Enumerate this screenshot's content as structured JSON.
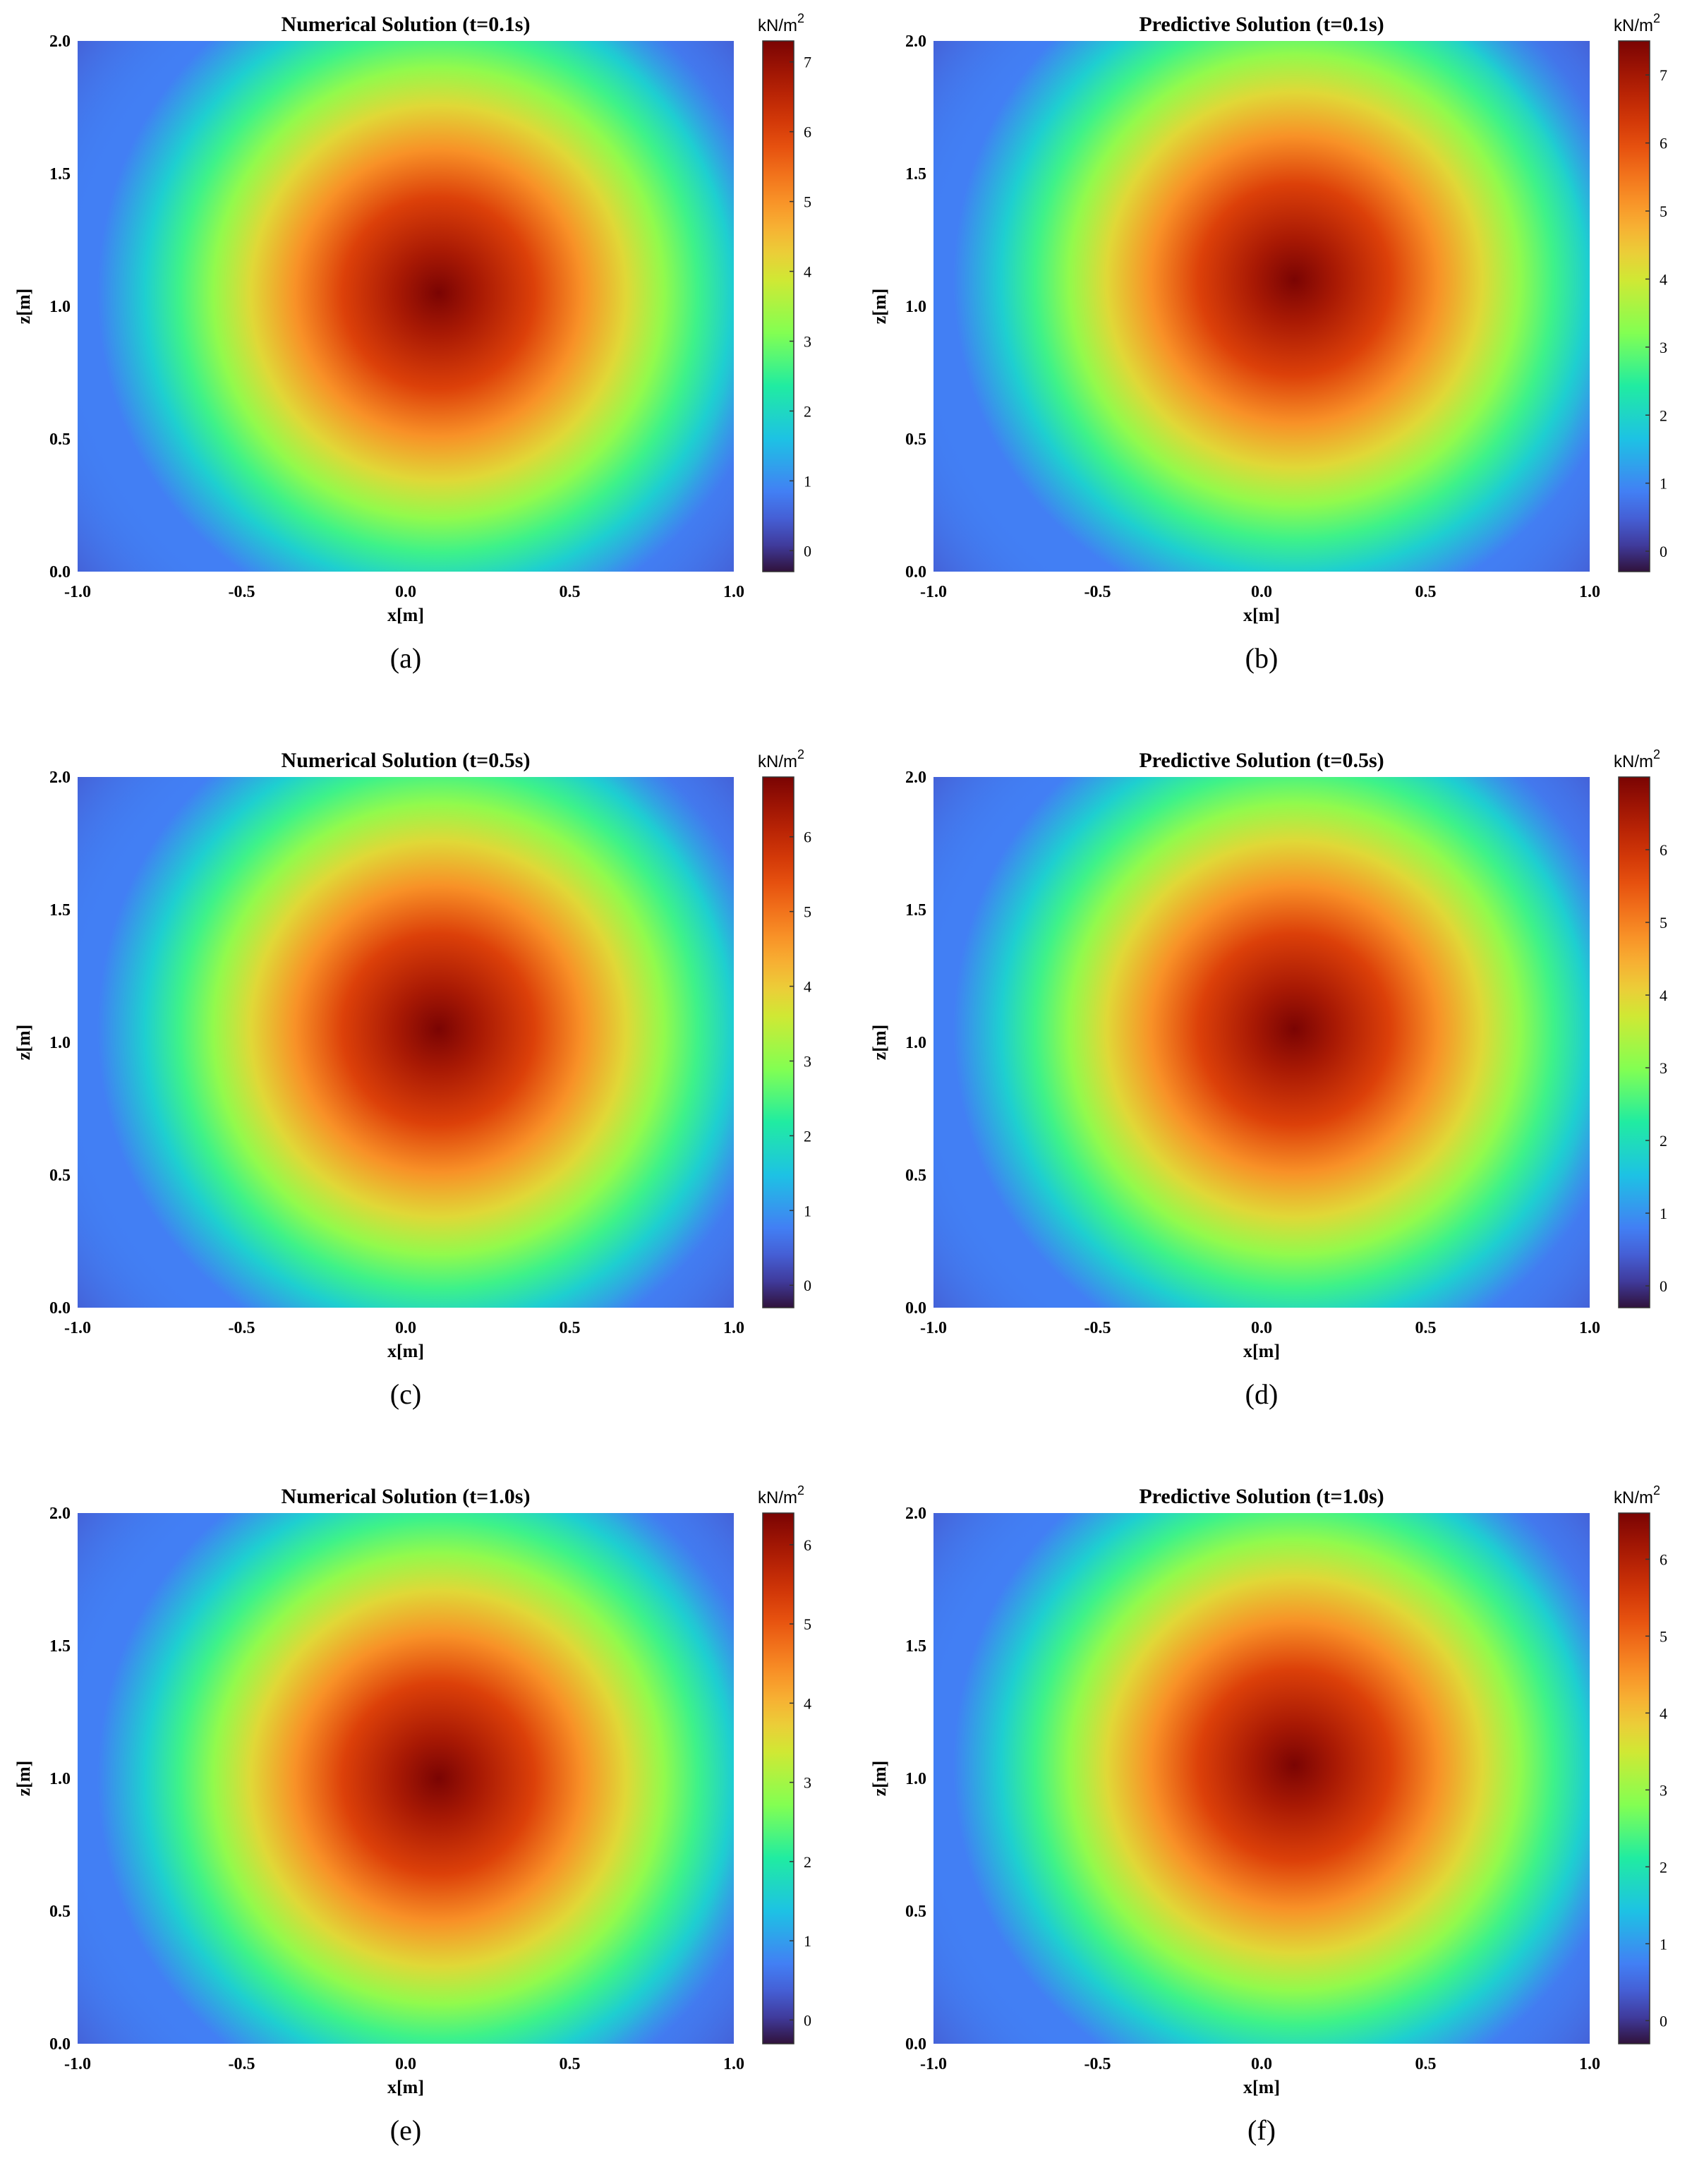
{
  "figure": {
    "panels": [
      {
        "id": "a",
        "caption": "(a)",
        "title": "Numerical Solution (t=0.1s)",
        "colorbar_unit": "kN/m",
        "colorbar_unit_exp": "2"
      },
      {
        "id": "b",
        "caption": "(b)",
        "title": "Predictive Solution (t=0.1s)",
        "colorbar_unit": "kN/m",
        "colorbar_unit_exp": "2"
      },
      {
        "id": "c",
        "caption": "(c)",
        "title": "Numerical Solution (t=0.5s)",
        "colorbar_unit": "kN/m",
        "colorbar_unit_exp": "2"
      },
      {
        "id": "d",
        "caption": "(d)",
        "title": "Predictive Solution (t=0.5s)",
        "colorbar_unit": "kN/m",
        "colorbar_unit_exp": "2"
      },
      {
        "id": "e",
        "caption": "(e)",
        "title": "Numerical Solution (t=1.0s)",
        "colorbar_unit": "kN/m",
        "colorbar_unit_exp": "2"
      },
      {
        "id": "f",
        "caption": "(f)",
        "title": "Predictive Solution (t=1.0s)",
        "colorbar_unit": "kN/m",
        "colorbar_unit_exp": "2"
      }
    ]
  },
  "chart_data": [
    {
      "type": "heatmap",
      "title": "Numerical Solution (t=0.1s)",
      "xlabel": "x[m]",
      "ylabel": "z[m]",
      "xlim": [
        -1.0,
        1.0
      ],
      "ylim": [
        0.0,
        2.0
      ],
      "xticks": [
        "-1.0",
        "-0.5",
        "0.0",
        "0.5",
        "1.0"
      ],
      "yticks": [
        "0.0",
        "0.5",
        "1.0",
        "1.5",
        "2.0"
      ],
      "colorbar": {
        "label": "kN/m^2",
        "range": [
          -0.3,
          7.3
        ],
        "ticks": [
          "0",
          "1",
          "2",
          "3",
          "4",
          "5",
          "6",
          "7"
        ],
        "colormap": "turbo"
      },
      "field": {
        "peak_x": 0.1,
        "peak_z": 1.05,
        "peak_value": 7.3,
        "min_value": -0.3
      }
    },
    {
      "type": "heatmap",
      "title": "Predictive Solution (t=0.1s)",
      "xlabel": "x[m]",
      "ylabel": "z[m]",
      "xlim": [
        -1.0,
        1.0
      ],
      "ylim": [
        0.0,
        2.0
      ],
      "xticks": [
        "-1.0",
        "-0.5",
        "0.0",
        "0.5",
        "1.0"
      ],
      "yticks": [
        "0.0",
        "0.5",
        "1.0",
        "1.5",
        "2.0"
      ],
      "colorbar": {
        "label": "kN/m^2",
        "range": [
          -0.3,
          7.5
        ],
        "ticks": [
          "0",
          "1",
          "2",
          "3",
          "4",
          "5",
          "6",
          "7"
        ],
        "colormap": "turbo"
      },
      "field": {
        "peak_x": 0.1,
        "peak_z": 1.1,
        "peak_value": 7.5,
        "min_value": -0.3
      }
    },
    {
      "type": "heatmap",
      "title": "Numerical Solution (t=0.5s)",
      "xlabel": "x[m]",
      "ylabel": "z[m]",
      "xlim": [
        -1.0,
        1.0
      ],
      "ylim": [
        0.0,
        2.0
      ],
      "xticks": [
        "-1.0",
        "-0.5",
        "0.0",
        "0.5",
        "1.0"
      ],
      "yticks": [
        "0.0",
        "0.5",
        "1.0",
        "1.5",
        "2.0"
      ],
      "colorbar": {
        "label": "kN/m^2",
        "range": [
          -0.3,
          6.8
        ],
        "ticks": [
          "0",
          "1",
          "2",
          "3",
          "4",
          "5",
          "6"
        ],
        "colormap": "turbo"
      },
      "field": {
        "peak_x": 0.1,
        "peak_z": 1.05,
        "peak_value": 6.8,
        "min_value": -0.3
      }
    },
    {
      "type": "heatmap",
      "title": "Predictive Solution (t=0.5s)",
      "xlabel": "x[m]",
      "ylabel": "z[m]",
      "xlim": [
        -1.0,
        1.0
      ],
      "ylim": [
        0.0,
        2.0
      ],
      "xticks": [
        "-1.0",
        "-0.5",
        "0.0",
        "0.5",
        "1.0"
      ],
      "yticks": [
        "0.0",
        "0.5",
        "1.0",
        "1.5",
        "2.0"
      ],
      "colorbar": {
        "label": "kN/m^2",
        "range": [
          -0.3,
          7.0
        ],
        "ticks": [
          "0",
          "1",
          "2",
          "3",
          "4",
          "5",
          "6"
        ],
        "colormap": "turbo"
      },
      "field": {
        "peak_x": 0.1,
        "peak_z": 1.05,
        "peak_value": 7.0,
        "min_value": -0.3
      }
    },
    {
      "type": "heatmap",
      "title": "Numerical Solution (t=1.0s)",
      "xlabel": "x[m]",
      "ylabel": "z[m]",
      "xlim": [
        -1.0,
        1.0
      ],
      "ylim": [
        0.0,
        2.0
      ],
      "xticks": [
        "-1.0",
        "-0.5",
        "0.0",
        "0.5",
        "1.0"
      ],
      "yticks": [
        "0.0",
        "0.5",
        "1.0",
        "1.5",
        "2.0"
      ],
      "colorbar": {
        "label": "kN/m^2",
        "range": [
          -0.3,
          6.4
        ],
        "ticks": [
          "0",
          "1",
          "2",
          "3",
          "4",
          "5",
          "6"
        ],
        "colormap": "turbo"
      },
      "field": {
        "peak_x": 0.1,
        "peak_z": 1.0,
        "peak_value": 6.4,
        "min_value": -0.3
      }
    },
    {
      "type": "heatmap",
      "title": "Predictive Solution (t=1.0s)",
      "xlabel": "x[m]",
      "ylabel": "z[m]",
      "xlim": [
        -1.0,
        1.0
      ],
      "ylim": [
        0.0,
        2.0
      ],
      "xticks": [
        "-1.0",
        "-0.5",
        "0.0",
        "0.5",
        "1.0"
      ],
      "yticks": [
        "0.0",
        "0.5",
        "1.0",
        "1.5",
        "2.0"
      ],
      "colorbar": {
        "label": "kN/m^2",
        "range": [
          -0.3,
          6.6
        ],
        "ticks": [
          "0",
          "1",
          "2",
          "3",
          "4",
          "5",
          "6"
        ],
        "colormap": "turbo"
      },
      "field": {
        "peak_x": 0.1,
        "peak_z": 1.05,
        "peak_value": 6.6,
        "min_value": -0.3
      }
    }
  ]
}
